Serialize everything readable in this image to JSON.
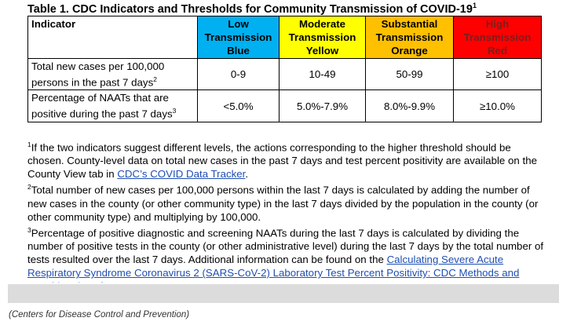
{
  "title": {
    "text": "Table 1. CDC Indicators and Thresholds for Community Transmission of COVID-19",
    "sup": "1"
  },
  "table": {
    "header": {
      "indicator": "Indicator",
      "levels": [
        {
          "line1": "Low",
          "line2": "Transmission",
          "line3": "Blue",
          "color": "#00b0f0"
        },
        {
          "line1": "Moderate",
          "line2": "Transmission",
          "line3": "Yellow",
          "color": "#ffff00"
        },
        {
          "line1": "Substantial",
          "line2": "Transmission",
          "line3": "Orange",
          "color": "#ffc000"
        },
        {
          "line1": "High",
          "line2": "Transmission",
          "line3": "Red",
          "color": "#ff0000"
        }
      ]
    },
    "rows": [
      {
        "label": "Total new cases per 100,000 persons in the past 7 days",
        "sup": "2",
        "values": [
          "0-9",
          "10-49",
          "50-99",
          "≥100"
        ]
      },
      {
        "label": "Percentage of NAATs that are positive during the past 7 days",
        "sup": "3",
        "values": [
          "<5.0%",
          "5.0%-7.9%",
          "8.0%-9.9%",
          "≥10.0%"
        ]
      }
    ]
  },
  "notes": {
    "n1": {
      "sup": "1",
      "text": "If the two indicators suggest different levels, the actions corresponding to the higher threshold should be chosen. County-level data on total new cases in the past 7 days and test percent positivity are available on the County View tab in ",
      "link": "CDC’s COVID Data Tracker",
      "after": "."
    },
    "n2": {
      "sup": "2",
      "text": "Total number of new cases per 100,000 persons within the last 7 days is calculated by adding the number of new cases in the county (or other community type) in the last 7 days divided by the population in the county (or other community type) and multiplying by 100,000."
    },
    "n3": {
      "sup": "3",
      "text": "Percentage of positive diagnostic and screening NAATs during the last 7 days is calculated by dividing the number of positive tests in the county (or other administrative level) during the last 7 days by the total number of tests resulted over the last 7 days. Additional information can be found on the ",
      "link": "Calculating Severe Acute Respiratory Syndrome Coronavirus 2 (SARS-CoV-2) Laboratory Test Percent Positivity: CDC Methods and Considerations for"
    }
  },
  "caption": "(Centers for Disease Control and Prevention)"
}
